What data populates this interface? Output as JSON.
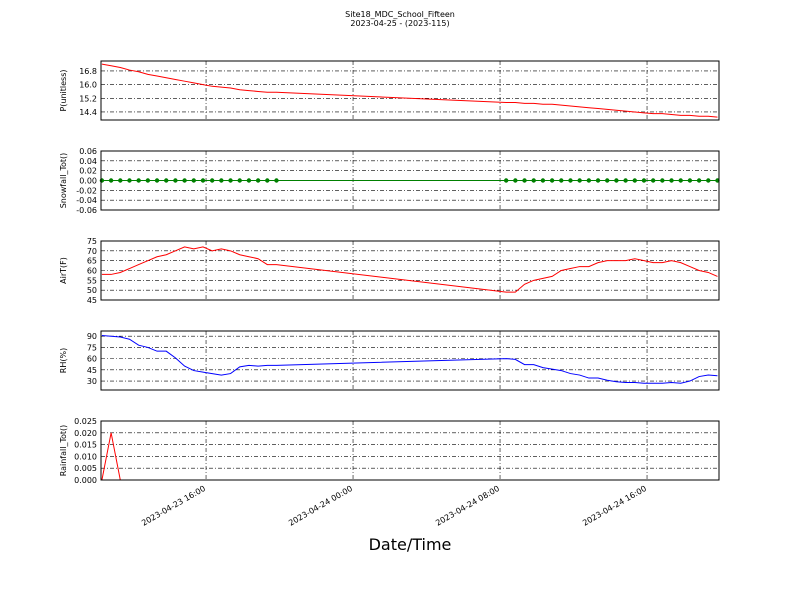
{
  "title": "Site18_MDC_School_Fifteen",
  "subtitle": "2023-04-25 - (2023-115)",
  "chart_data": [
    {
      "type": "line",
      "ylabel": "P(unitless)",
      "grid": true,
      "xlim": [
        "2023-04-23 10:17",
        "2023-04-24 19:55"
      ],
      "xticks": [
        "2023-04-23 16:00",
        "2023-04-24 00:00",
        "2023-04-24 08:00",
        "2023-04-24 16:00"
      ],
      "ylim": [
        13.93,
        17.38
      ],
      "yticks": [
        14.4,
        15.2,
        {
          "value": 16.0,
          "label": "16.0"
        },
        16.8
      ],
      "x": [
        "2023-04-23 10:20",
        "2023-04-23 10:50",
        "2023-04-23 11:20",
        "2023-04-23 11:50",
        "2023-04-23 12:20",
        "2023-04-23 12:50",
        "2023-04-23 13:20",
        "2023-04-23 13:50",
        "2023-04-23 14:20",
        "2023-04-23 14:50",
        "2023-04-23 15:20",
        "2023-04-23 15:50",
        "2023-04-23 16:20",
        "2023-04-23 16:50",
        "2023-04-23 17:20",
        "2023-04-23 17:50",
        "2023-04-23 18:20",
        "2023-04-23 18:50",
        "2023-04-23 19:20",
        "2023-04-23 19:50",
        "2023-04-24 08:20",
        "2023-04-24 08:50",
        "2023-04-24 09:20",
        "2023-04-24 09:50",
        "2023-04-24 10:20",
        "2023-04-24 10:50",
        "2023-04-24 11:20",
        "2023-04-24 11:50",
        "2023-04-24 12:20",
        "2023-04-24 12:50",
        "2023-04-24 13:20",
        "2023-04-24 13:50",
        "2023-04-24 14:20",
        "2023-04-24 14:50",
        "2023-04-24 15:20",
        "2023-04-24 15:50",
        "2023-04-24 16:20",
        "2023-04-24 16:50",
        "2023-04-24 17:20",
        "2023-04-24 17:50",
        "2023-04-24 18:20",
        "2023-04-24 18:50",
        "2023-04-24 19:20",
        "2023-04-24 19:50"
      ],
      "series": [
        {
          "color": "#ff0000",
          "values": [
            17.2,
            17.1,
            17.0,
            16.85,
            16.75,
            16.6,
            16.5,
            16.4,
            16.3,
            16.2,
            16.1,
            16.0,
            15.9,
            15.85,
            15.8,
            15.7,
            15.65,
            15.6,
            15.55,
            15.55,
            14.95,
            14.95,
            14.9,
            14.9,
            14.85,
            14.85,
            14.8,
            14.75,
            14.7,
            14.65,
            14.6,
            14.55,
            14.5,
            14.45,
            14.4,
            14.35,
            14.3,
            14.3,
            14.25,
            14.2,
            14.2,
            14.15,
            14.15,
            14.1
          ]
        }
      ]
    },
    {
      "type": "line",
      "ylabel": "Snowfall_Tot()",
      "grid": true,
      "markers": true,
      "xlim": [
        "2023-04-23 10:17",
        "2023-04-24 19:55"
      ],
      "xticks": [
        "2023-04-23 16:00",
        "2023-04-24 00:00",
        "2023-04-24 08:00",
        "2023-04-24 16:00"
      ],
      "ylim": [
        -0.06,
        0.06
      ],
      "yticks": [
        -0.06,
        -0.04,
        -0.02,
        {
          "value": 0,
          "label": "0.00"
        },
        0.02,
        0.04,
        0.06
      ],
      "x": [
        "2023-04-23 10:20",
        "2023-04-23 10:50",
        "2023-04-23 11:20",
        "2023-04-23 11:50",
        "2023-04-23 12:20",
        "2023-04-23 12:50",
        "2023-04-23 13:20",
        "2023-04-23 13:50",
        "2023-04-23 14:20",
        "2023-04-23 14:50",
        "2023-04-23 15:20",
        "2023-04-23 15:50",
        "2023-04-23 16:20",
        "2023-04-23 16:50",
        "2023-04-23 17:20",
        "2023-04-23 17:50",
        "2023-04-23 18:20",
        "2023-04-23 18:50",
        "2023-04-23 19:20",
        "2023-04-23 19:50",
        "2023-04-24 08:20",
        "2023-04-24 08:50",
        "2023-04-24 09:20",
        "2023-04-24 09:50",
        "2023-04-24 10:20",
        "2023-04-24 10:50",
        "2023-04-24 11:20",
        "2023-04-24 11:50",
        "2023-04-24 12:20",
        "2023-04-24 12:50",
        "2023-04-24 13:20",
        "2023-04-24 13:50",
        "2023-04-24 14:20",
        "2023-04-24 14:50",
        "2023-04-24 15:20",
        "2023-04-24 15:50",
        "2023-04-24 16:20",
        "2023-04-24 16:50",
        "2023-04-24 17:20",
        "2023-04-24 17:50",
        "2023-04-24 18:20",
        "2023-04-24 18:50",
        "2023-04-24 19:20",
        "2023-04-24 19:50"
      ],
      "series": [
        {
          "color": "#008000",
          "values": [
            0,
            0,
            0,
            0,
            0,
            0,
            0,
            0,
            0,
            0,
            0,
            0,
            0,
            0,
            0,
            0,
            0,
            0,
            0,
            0,
            0,
            0,
            0,
            0,
            0,
            0,
            0,
            0,
            0,
            0,
            0,
            0,
            0,
            0,
            0,
            0,
            0,
            0,
            0,
            0,
            0,
            0,
            0,
            0
          ]
        }
      ]
    },
    {
      "type": "line",
      "ylabel": "AirT(F)",
      "grid": true,
      "xlim": [
        "2023-04-23 10:17",
        "2023-04-24 19:55"
      ],
      "xticks": [
        "2023-04-23 16:00",
        "2023-04-24 00:00",
        "2023-04-24 08:00",
        "2023-04-24 16:00"
      ],
      "ylim": [
        45,
        75
      ],
      "yticks": [
        45,
        50,
        55,
        60,
        65,
        70,
        75
      ],
      "x": [
        "2023-04-23 10:20",
        "2023-04-23 10:50",
        "2023-04-23 11:20",
        "2023-04-23 11:50",
        "2023-04-23 12:20",
        "2023-04-23 12:50",
        "2023-04-23 13:20",
        "2023-04-23 13:50",
        "2023-04-23 14:20",
        "2023-04-23 14:50",
        "2023-04-23 15:20",
        "2023-04-23 15:50",
        "2023-04-23 16:20",
        "2023-04-23 16:50",
        "2023-04-23 17:20",
        "2023-04-23 17:50",
        "2023-04-23 18:20",
        "2023-04-23 18:50",
        "2023-04-23 19:20",
        "2023-04-23 19:50",
        "2023-04-24 08:20",
        "2023-04-24 08:50",
        "2023-04-24 09:20",
        "2023-04-24 09:50",
        "2023-04-24 10:20",
        "2023-04-24 10:50",
        "2023-04-24 11:20",
        "2023-04-24 11:50",
        "2023-04-24 12:20",
        "2023-04-24 12:50",
        "2023-04-24 13:20",
        "2023-04-24 13:50",
        "2023-04-24 14:20",
        "2023-04-24 14:50",
        "2023-04-24 15:20",
        "2023-04-24 15:50",
        "2023-04-24 16:20",
        "2023-04-24 16:50",
        "2023-04-24 17:20",
        "2023-04-24 17:50",
        "2023-04-24 18:20",
        "2023-04-24 18:50",
        "2023-04-24 19:20",
        "2023-04-24 19:50"
      ],
      "series": [
        {
          "color": "#ff0000",
          "values": [
            58,
            58,
            59,
            61,
            63,
            65,
            67,
            68,
            70,
            72,
            71,
            72,
            70,
            71,
            70,
            68,
            67,
            66,
            63,
            63,
            49,
            49,
            53,
            55,
            56,
            57,
            60,
            61,
            62,
            62,
            64,
            65,
            65,
            65,
            66,
            65,
            64,
            64,
            65,
            64,
            62,
            60,
            59,
            57
          ]
        }
      ]
    },
    {
      "type": "line",
      "ylabel": "RH(%)",
      "grid": true,
      "xlim": [
        "2023-04-23 10:17",
        "2023-04-24 19:55"
      ],
      "xticks": [
        "2023-04-23 16:00",
        "2023-04-24 00:00",
        "2023-04-24 08:00",
        "2023-04-24 16:00"
      ],
      "ylim": [
        18,
        97
      ],
      "yticks": [
        30,
        45,
        60,
        75,
        90
      ],
      "x": [
        "2023-04-23 10:20",
        "2023-04-23 10:50",
        "2023-04-23 11:20",
        "2023-04-23 11:50",
        "2023-04-23 12:20",
        "2023-04-23 12:50",
        "2023-04-23 13:20",
        "2023-04-23 13:50",
        "2023-04-23 14:20",
        "2023-04-23 14:50",
        "2023-04-23 15:20",
        "2023-04-23 15:50",
        "2023-04-23 16:20",
        "2023-04-23 16:50",
        "2023-04-23 17:20",
        "2023-04-23 17:50",
        "2023-04-23 18:20",
        "2023-04-23 18:50",
        "2023-04-23 19:20",
        "2023-04-23 19:50",
        "2023-04-24 08:20",
        "2023-04-24 08:50",
        "2023-04-24 09:20",
        "2023-04-24 09:50",
        "2023-04-24 10:20",
        "2023-04-24 10:50",
        "2023-04-24 11:20",
        "2023-04-24 11:50",
        "2023-04-24 12:20",
        "2023-04-24 12:50",
        "2023-04-24 13:20",
        "2023-04-24 13:50",
        "2023-04-24 14:20",
        "2023-04-24 14:50",
        "2023-04-24 15:20",
        "2023-04-24 15:50",
        "2023-04-24 16:20",
        "2023-04-24 16:50",
        "2023-04-24 17:20",
        "2023-04-24 17:50",
        "2023-04-24 18:20",
        "2023-04-24 18:50",
        "2023-04-24 19:20",
        "2023-04-24 19:50"
      ],
      "series": [
        {
          "color": "#0000ff",
          "values": [
            91,
            90,
            89,
            86,
            78,
            75,
            70,
            70,
            61,
            50,
            44,
            42,
            40,
            38,
            40,
            49,
            51,
            50,
            51,
            51,
            60,
            59,
            52,
            52,
            48,
            46,
            44,
            40,
            38,
            34,
            34,
            31,
            29,
            28,
            28,
            27,
            27,
            27,
            28,
            27,
            30,
            36,
            38,
            37
          ]
        }
      ]
    },
    {
      "type": "line",
      "ylabel": "Rainfall_Tot()",
      "xlabel": "Date/Time",
      "grid": true,
      "xlim": [
        "2023-04-23 10:17",
        "2023-04-24 19:55"
      ],
      "xticks": [
        "2023-04-23 16:00",
        "2023-04-24 00:00",
        "2023-04-24 08:00",
        "2023-04-24 16:00"
      ],
      "ylim": [
        0,
        0.025
      ],
      "yticks": [
        {
          "value": 0,
          "label": "0.000"
        },
        {
          "value": 0.005,
          "label": "0.005"
        },
        {
          "value": 0.01,
          "label": "0.010"
        },
        {
          "value": 0.015,
          "label": "0.015"
        },
        {
          "value": 0.02,
          "label": "0.020"
        },
        {
          "value": 0.025,
          "label": "0.025"
        }
      ],
      "x": [
        "2023-04-23 10:20",
        "2023-04-23 10:50",
        "2023-04-23 11:20",
        "2023-04-23 11:50",
        "2023-04-23 12:20",
        "2023-04-23 12:50",
        "2023-04-23 13:20",
        "2023-04-23 13:50",
        "2023-04-23 14:20",
        "2023-04-23 14:50",
        "2023-04-23 15:20",
        "2023-04-23 15:50",
        "2023-04-23 16:20",
        "2023-04-23 16:50",
        "2023-04-23 17:20",
        "2023-04-23 17:50",
        "2023-04-23 18:20",
        "2023-04-23 18:50",
        "2023-04-23 19:20",
        "2023-04-23 19:50",
        "2023-04-24 08:20",
        "2023-04-24 08:50",
        "2023-04-24 09:20",
        "2023-04-24 09:50",
        "2023-04-24 10:20",
        "2023-04-24 10:50",
        "2023-04-24 11:20",
        "2023-04-24 11:50",
        "2023-04-24 12:20",
        "2023-04-24 12:50",
        "2023-04-24 13:20",
        "2023-04-24 13:50",
        "2023-04-24 14:20",
        "2023-04-24 14:50",
        "2023-04-24 15:20",
        "2023-04-24 15:50",
        "2023-04-24 16:20",
        "2023-04-24 16:50",
        "2023-04-24 17:20",
        "2023-04-24 17:50",
        "2023-04-24 18:20",
        "2023-04-24 18:50",
        "2023-04-24 19:20",
        "2023-04-24 19:50"
      ],
      "series": [
        {
          "color": "#ff0000",
          "values": [
            0,
            0.02,
            0,
            0,
            0,
            0,
            0,
            0,
            0,
            0,
            0,
            0,
            0,
            0,
            0,
            0,
            0,
            0,
            0,
            0,
            0,
            0,
            0,
            0,
            0,
            0,
            0,
            0,
            0,
            0,
            0,
            0,
            0,
            0,
            0,
            0,
            0,
            0,
            0,
            0,
            0,
            0,
            0,
            0
          ]
        }
      ]
    }
  ]
}
